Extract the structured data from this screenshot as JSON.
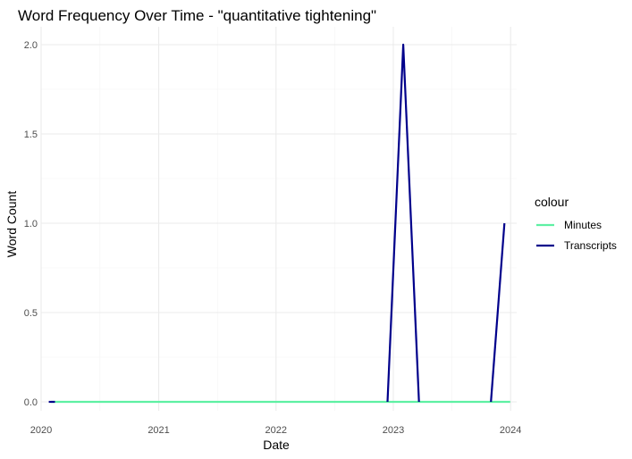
{
  "chart_data": {
    "type": "line",
    "title": "Word Frequency Over Time - \"quantitative tightening\"",
    "xlabel": "Date",
    "ylabel": "Word Count",
    "x_type": "date",
    "xlim": [
      "2020-01-01",
      "2024-01-20"
    ],
    "ylim": [
      -0.05,
      2.1
    ],
    "x_ticks": [
      {
        "date": "2020-01-01",
        "label": "2020"
      },
      {
        "date": "2021-01-01",
        "label": "2021"
      },
      {
        "date": "2022-01-01",
        "label": "2022"
      },
      {
        "date": "2023-01-01",
        "label": "2023"
      },
      {
        "date": "2024-01-01",
        "label": "2024"
      }
    ],
    "y_ticks": [
      {
        "value": 0,
        "label": "0.0"
      },
      {
        "value": 0.5,
        "label": "0.5"
      },
      {
        "value": 1,
        "label": "1.0"
      },
      {
        "value": 1.5,
        "label": "1.5"
      },
      {
        "value": 2,
        "label": "2.0"
      }
    ],
    "grid": true,
    "legend": {
      "title": "colour",
      "position": "right"
    },
    "series": [
      {
        "name": "Minutes",
        "color": "#5ef0a3",
        "points": [
          {
            "x": "2020-02-01",
            "y": 0
          },
          {
            "x": "2023-12-31",
            "y": 0
          }
        ]
      },
      {
        "name": "Transcripts",
        "color": "#00008b",
        "segments": [
          [
            {
              "x": "2020-01-25",
              "y": 0
            },
            {
              "x": "2020-02-13",
              "y": 0
            }
          ],
          [
            {
              "x": "2022-12-14",
              "y": 0
            },
            {
              "x": "2023-02-01",
              "y": 2
            },
            {
              "x": "2023-03-22",
              "y": 0
            }
          ],
          [
            {
              "x": "2023-11-01",
              "y": 0
            },
            {
              "x": "2023-12-13",
              "y": 1
            }
          ]
        ]
      }
    ]
  }
}
